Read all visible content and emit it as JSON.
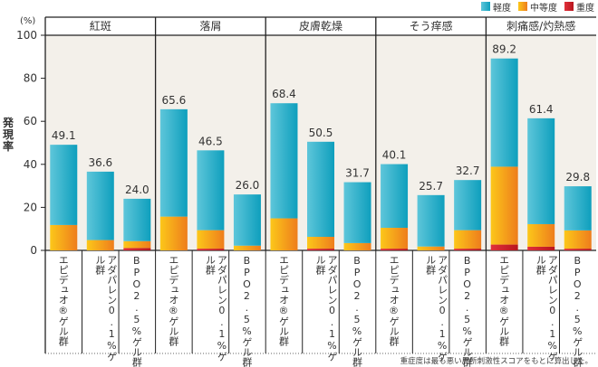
{
  "chart_data": {
    "type": "bar",
    "stacked": true,
    "title": "",
    "ylabel": "発現率",
    "yunit": "(%)",
    "ylim": [
      0,
      100
    ],
    "yticks": [
      0,
      20,
      40,
      60,
      80,
      100
    ],
    "legend_position": "top-right",
    "legend": [
      {
        "name": "軽度",
        "color": "#1aa7c4"
      },
      {
        "name": "中等度",
        "color": "#f5a623"
      },
      {
        "name": "重度",
        "color": "#d32a35"
      }
    ],
    "groups": [
      "紅斑",
      "落屑",
      "皮膚乾燥",
      "そう痒感",
      "刺痛感/灼熱感"
    ],
    "categories": [
      "エピデュオ®ゲル群",
      "アダパレン0.1%ゲル群",
      "BPO2.5%ゲル群"
    ],
    "category_labels_vertical": [
      "エピデュオ®ゲル群",
      "アダパレン0.1%ゲル群",
      "BPO2.5%ゲル群"
    ],
    "totals": [
      [
        49.1,
        36.6,
        24.0
      ],
      [
        65.6,
        46.5,
        26.0
      ],
      [
        68.4,
        50.5,
        31.7
      ],
      [
        40.1,
        25.7,
        32.7
      ],
      [
        89.2,
        61.4,
        29.8
      ]
    ],
    "series": [
      {
        "name": "重度",
        "values": [
          [
            0.0,
            0.0,
            1.1
          ],
          [
            0.0,
            0.8,
            0.0
          ],
          [
            0.0,
            0.8,
            0.0
          ],
          [
            0.8,
            0.0,
            0.8
          ],
          [
            2.7,
            1.7,
            0.8
          ]
        ]
      },
      {
        "name": "中等度",
        "values": [
          [
            11.8,
            4.8,
            3.2
          ],
          [
            15.7,
            8.6,
            2.2
          ],
          [
            14.9,
            5.5,
            3.4
          ],
          [
            9.7,
            1.8,
            8.6
          ],
          [
            36.2,
            10.5,
            8.5
          ]
        ]
      },
      {
        "name": "軽度",
        "values": [
          [
            37.3,
            31.8,
            19.7
          ],
          [
            49.9,
            37.1,
            23.8
          ],
          [
            53.5,
            44.2,
            28.3
          ],
          [
            29.6,
            23.9,
            23.3
          ],
          [
            50.3,
            49.2,
            20.5
          ]
        ]
      }
    ],
    "footnote": "重症度は最も悪い局所刺激性スコアをもとに算出した。"
  }
}
